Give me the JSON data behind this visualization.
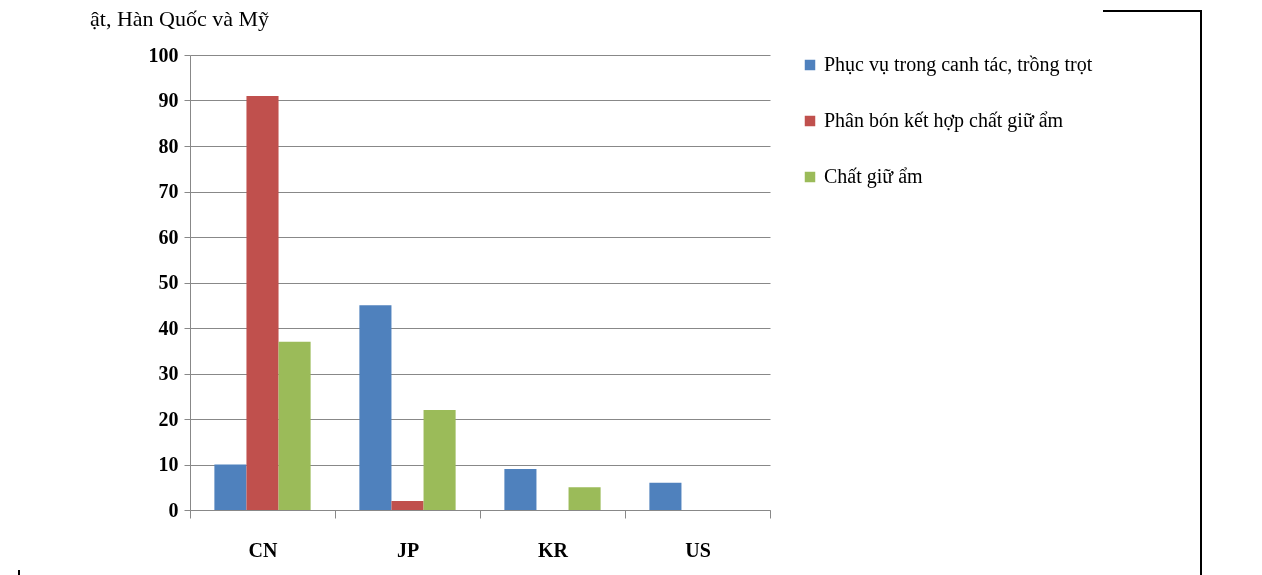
{
  "chart_data": {
    "type": "bar",
    "title": "ật, Hàn Quốc và Mỹ",
    "categories": [
      "CN",
      "JP",
      "KR",
      "US"
    ],
    "series": [
      {
        "name": "Phục vụ trong canh tác, trồng trọt",
        "color": "#4f81bd",
        "values": [
          10,
          45,
          9,
          6
        ]
      },
      {
        "name": "Phân bón kết hợp chất giữ ẩm",
        "color": "#c0504d",
        "values": [
          91,
          2,
          null,
          null
        ]
      },
      {
        "name": "Chất giữ ẩm",
        "color": "#9bbb59",
        "values": [
          37,
          22,
          5,
          null
        ]
      }
    ],
    "ylim": [
      0,
      100
    ],
    "yticks": [
      0,
      10,
      20,
      30,
      40,
      50,
      60,
      70,
      80,
      90,
      100
    ],
    "grid": "y",
    "legend": "right"
  }
}
